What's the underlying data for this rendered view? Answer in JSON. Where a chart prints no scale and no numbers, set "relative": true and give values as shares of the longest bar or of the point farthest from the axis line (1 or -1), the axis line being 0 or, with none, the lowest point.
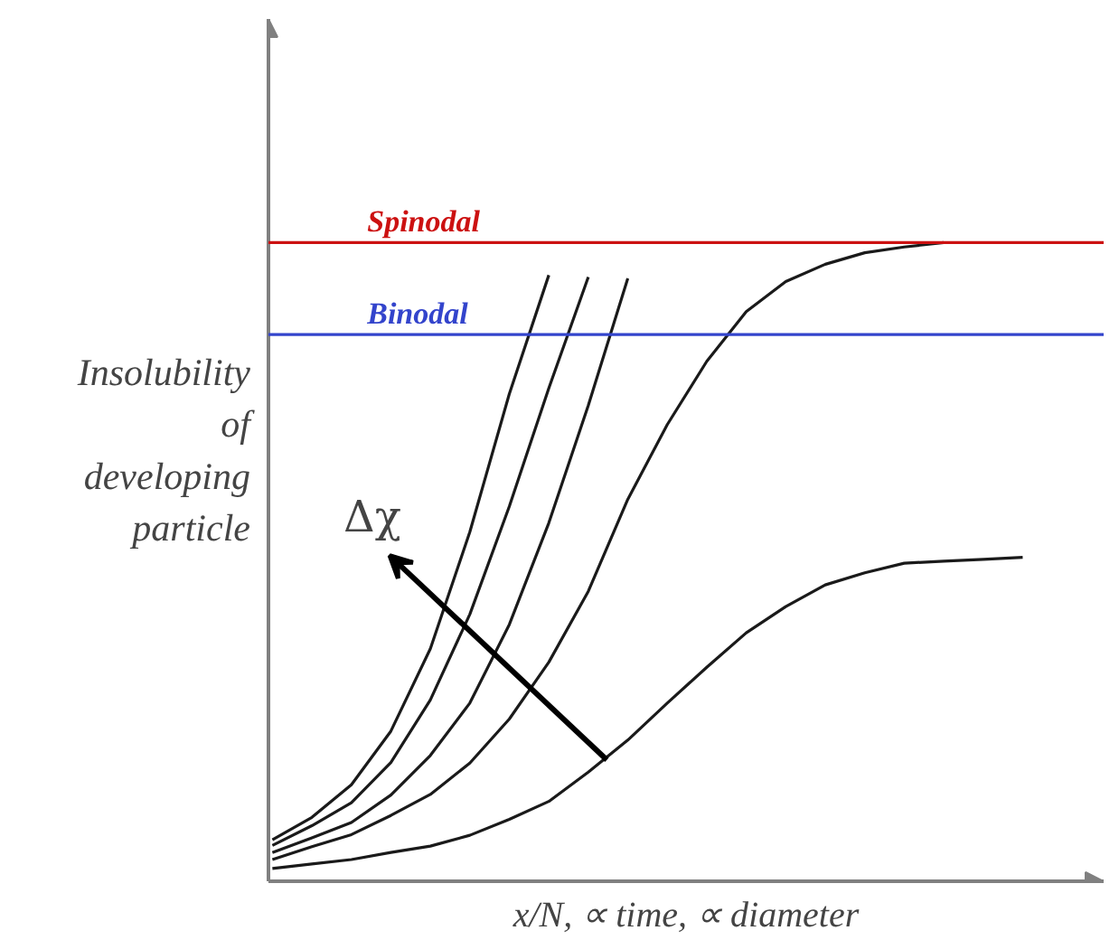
{
  "chart_data": {
    "type": "line",
    "relative": true,
    "xlabel": "x/N, ∝ time, ∝ diameter",
    "ylabel": "Insolubility of developing particle",
    "grid": false,
    "categories": [
      null,
      null,
      null,
      null,
      null,
      null,
      null,
      null,
      null,
      null,
      null,
      null,
      null,
      null,
      null,
      null,
      null,
      null,
      null,
      null
    ],
    "series": [
      {
        "color": "#1a1a1a",
        "values": [
          0.065,
          0.1,
          0.151,
          0.235,
          0.364,
          0.547,
          0.763,
          0.949,
          null,
          null,
          null,
          null,
          null,
          null,
          null,
          null,
          null,
          null,
          null,
          null
        ]
      },
      {
        "color": "#1a1a1a",
        "values": [
          0.056,
          0.087,
          0.123,
          0.186,
          0.284,
          0.418,
          0.587,
          0.772,
          0.946,
          null,
          null,
          null,
          null,
          null,
          null,
          null,
          null,
          null,
          null,
          null
        ]
      },
      {
        "color": "#1a1a1a",
        "values": [
          0.045,
          0.068,
          0.092,
          0.135,
          0.197,
          0.279,
          0.402,
          0.561,
          0.745,
          0.944,
          null,
          null,
          null,
          null,
          null,
          null,
          null,
          null,
          null,
          null
        ]
      },
      {
        "color": "#1a1a1a",
        "values": [
          0.034,
          0.054,
          0.073,
          0.103,
          0.136,
          0.185,
          0.254,
          0.343,
          0.454,
          0.598,
          0.715,
          0.814,
          0.892,
          0.939,
          0.966,
          0.984,
          0.993,
          1.0,
          null,
          null
        ]
      },
      {
        "color": "#1a1a1a",
        "values": [
          0.02,
          0.027,
          0.034,
          0.045,
          0.055,
          0.072,
          0.097,
          0.125,
          0.171,
          0.221,
          0.279,
          0.335,
          0.389,
          0.43,
          0.464,
          0.483,
          0.498,
          0.501,
          0.504,
          0.507
        ]
      }
    ],
    "ref_lines": [
      {
        "axis": "y",
        "value": 1.0,
        "label": "Spinodal",
        "color": "#cc1111"
      },
      {
        "axis": "y",
        "value": 0.856,
        "label": "Binodal",
        "color": "#3344cc"
      }
    ],
    "annotations": [
      "Δχ"
    ]
  }
}
